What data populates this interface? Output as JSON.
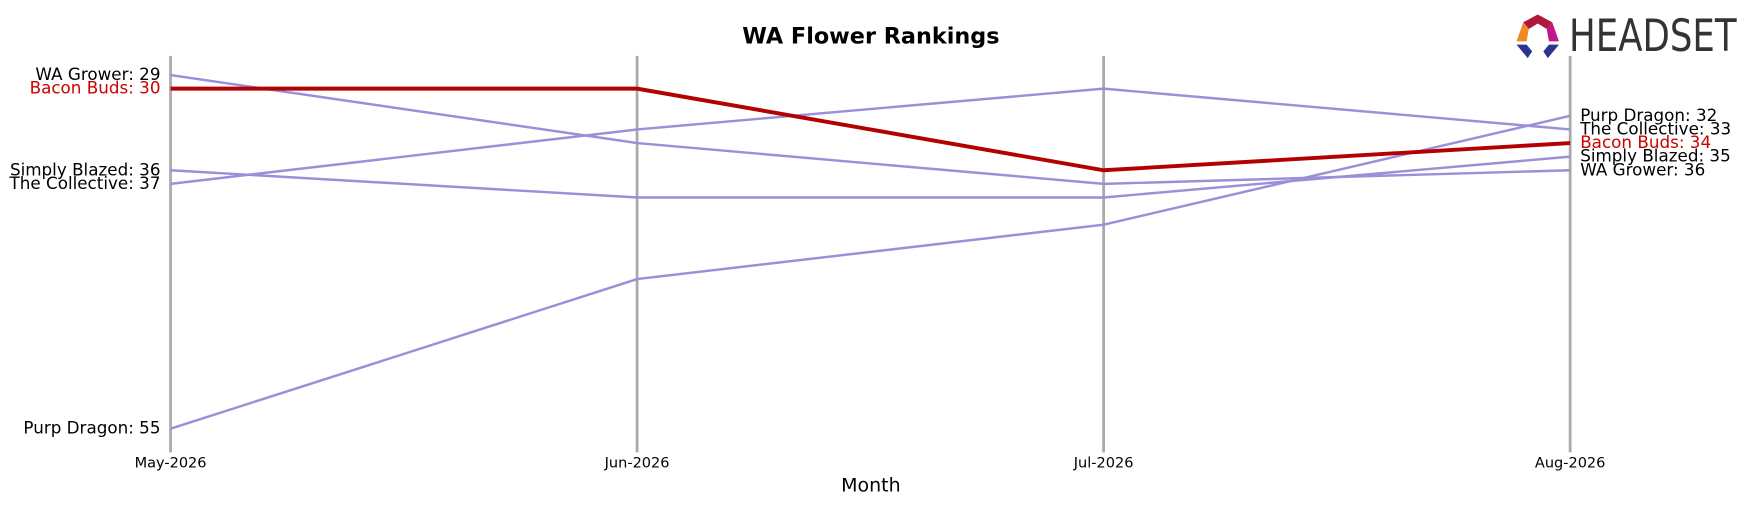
{
  "chart_data": {
    "type": "line",
    "title": "WA Flower Rankings",
    "x_label": "Month",
    "logo_text": "HEADSET",
    "categories": [
      "May-2026",
      "Jun-2026",
      "Jul-2026",
      "Aug-2026"
    ],
    "ylim": [
      56,
      28
    ],
    "inverted": true,
    "grid": false,
    "series": [
      {
        "name": "WA Grower",
        "color": "#9b8fd8",
        "values": [
          29,
          34,
          37,
          36
        ],
        "value_labels": [
          "WA Grower: 29",
          null,
          null,
          "WA Grower: 36"
        ],
        "label_color": "#000000"
      },
      {
        "name": "Simply Blazed",
        "color": "#9b8fd8",
        "values": [
          36,
          38,
          38,
          35
        ],
        "value_labels": [
          "Simply Blazed: 36",
          null,
          null,
          "Simply Blazed: 35"
        ],
        "label_color": "#000000"
      },
      {
        "name": "The Collective",
        "color": "#9b8fd8",
        "values": [
          37,
          33,
          30,
          33
        ],
        "value_labels": [
          "The Collective: 37",
          null,
          null,
          "The Collective: 33"
        ],
        "label_color": "#000000"
      },
      {
        "name": "Purp Dragon",
        "color": "#9b8fd8",
        "values": [
          55,
          44,
          40,
          32
        ],
        "value_labels": [
          "Purp Dragon: 55",
          null,
          null,
          "Purp Dragon: 32"
        ],
        "label_color": "#000000"
      },
      {
        "name": "Bacon Buds",
        "color": "#b30000",
        "values": [
          30,
          30,
          36,
          34
        ],
        "value_labels": [
          "Bacon Buds: 30",
          null,
          null,
          "Bacon Buds: 34"
        ],
        "label_color": "#cc0000",
        "highlight": true
      }
    ]
  }
}
